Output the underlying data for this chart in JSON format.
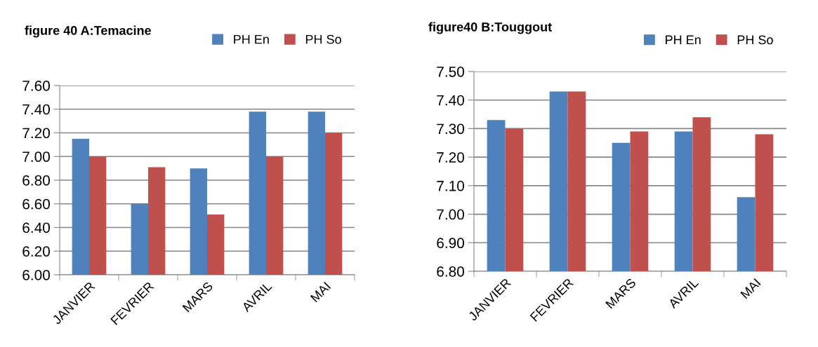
{
  "chart_data": [
    {
      "type": "bar",
      "title": "figure 40 A:Temacine",
      "categories": [
        "JANVIER",
        "FEVRIER",
        "MARS",
        "AVRIL",
        "MAI"
      ],
      "series": [
        {
          "name": "PH En",
          "color": "#4f81bd",
          "values": [
            7.15,
            6.6,
            6.9,
            7.38,
            7.38
          ]
        },
        {
          "name": "PH So",
          "color": "#c0504d",
          "values": [
            7.0,
            6.91,
            6.51,
            7.0,
            7.2
          ]
        }
      ],
      "ylim": [
        6.0,
        7.6
      ],
      "yticks": [
        {
          "value": 6.0,
          "label": "6.00"
        },
        {
          "value": 6.2,
          "label": "6.20"
        },
        {
          "value": 6.4,
          "label": "6.40"
        },
        {
          "value": 6.6,
          "label": "6.60"
        },
        {
          "value": 6.8,
          "label": "6.80"
        },
        {
          "value": 7.0,
          "label": "7.00"
        },
        {
          "value": 7.2,
          "label": "7.20"
        },
        {
          "value": 7.4,
          "label": "7.40"
        },
        {
          "value": 7.6,
          "label": "7.60"
        }
      ],
      "grid": "y",
      "legend": "top right"
    },
    {
      "type": "bar",
      "title": "figure40 B:Touggout",
      "categories": [
        "JANVIER",
        "FEVRIER",
        "MARS",
        "AVRIL",
        "MAI"
      ],
      "series": [
        {
          "name": "PH En",
          "color": "#4f81bd",
          "values": [
            7.33,
            7.43,
            7.25,
            7.29,
            7.06
          ]
        },
        {
          "name": "PH So",
          "color": "#c0504d",
          "values": [
            7.3,
            7.43,
            7.29,
            7.34,
            7.28
          ]
        }
      ],
      "ylim": [
        6.8,
        7.5
      ],
      "yticks": [
        {
          "value": 6.8,
          "label": "6.80"
        },
        {
          "value": 6.9,
          "label": "6.90"
        },
        {
          "value": 7.0,
          "label": "7.00"
        },
        {
          "value": 7.1,
          "label": "7.10"
        },
        {
          "value": 7.2,
          "label": "7.20"
        },
        {
          "value": 7.3,
          "label": "7.30"
        },
        {
          "value": 7.4,
          "label": "7.40"
        },
        {
          "value": 7.5,
          "label": "7.50"
        }
      ],
      "grid": "y",
      "legend": "top right"
    }
  ]
}
